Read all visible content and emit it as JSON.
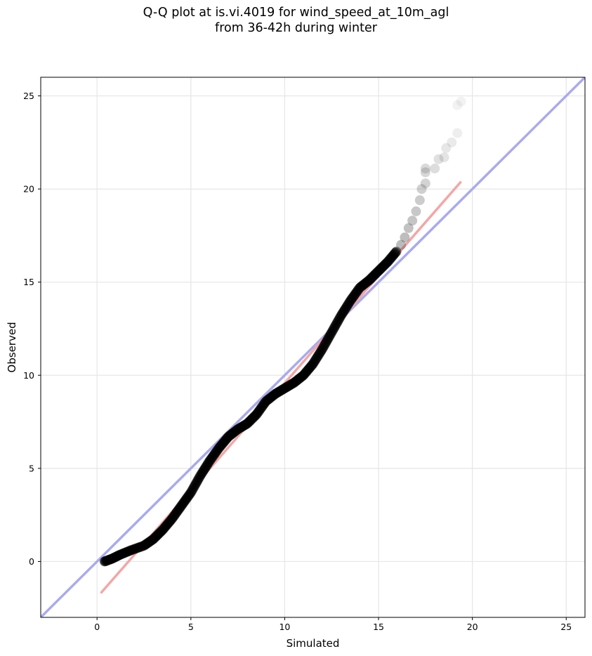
{
  "chart_data": {
    "type": "scatter",
    "title": "Q-Q plot at is.vi.4019 for wind_speed_at_10m_agl",
    "subtitle": "from 36-42h during winter",
    "xlabel": "Simulated",
    "ylabel": "Observed",
    "xlim": [
      -3,
      26
    ],
    "ylim": [
      -3,
      26
    ],
    "x_ticks": [
      "0",
      "5",
      "10",
      "15",
      "20",
      "25"
    ],
    "y_ticks": [
      "0",
      "5",
      "10",
      "15",
      "20",
      "25"
    ],
    "grid": true,
    "reference_line": {
      "label": "",
      "color": "#aaaaee",
      "from": [
        -3,
        -3
      ],
      "to": [
        26,
        26
      ]
    },
    "fit_line": {
      "label": "",
      "color": "#f4a6a6",
      "from": [
        0.2,
        -1.7
      ],
      "to": [
        19.4,
        20.4
      ]
    },
    "quantile_curve": [
      [
        0.4,
        0.0
      ],
      [
        0.8,
        0.15
      ],
      [
        1.2,
        0.35
      ],
      [
        1.8,
        0.6
      ],
      [
        2.5,
        0.85
      ],
      [
        3.0,
        1.2
      ],
      [
        3.5,
        1.7
      ],
      [
        4.0,
        2.3
      ],
      [
        4.5,
        3.0
      ],
      [
        5.0,
        3.7
      ],
      [
        5.5,
        4.6
      ],
      [
        6.0,
        5.4
      ],
      [
        6.5,
        6.1
      ],
      [
        7.0,
        6.7
      ],
      [
        7.5,
        7.1
      ],
      [
        8.0,
        7.4
      ],
      [
        8.5,
        7.9
      ],
      [
        9.0,
        8.6
      ],
      [
        9.5,
        9.0
      ],
      [
        10.0,
        9.3
      ],
      [
        10.5,
        9.6
      ],
      [
        11.0,
        10.0
      ],
      [
        11.5,
        10.6
      ],
      [
        12.0,
        11.4
      ],
      [
        12.5,
        12.3
      ],
      [
        13.0,
        13.2
      ],
      [
        13.5,
        14.0
      ],
      [
        14.0,
        14.7
      ],
      [
        14.5,
        15.1
      ],
      [
        15.0,
        15.6
      ],
      [
        15.5,
        16.1
      ],
      [
        16.0,
        16.7
      ]
    ],
    "tail_points": [
      [
        16.2,
        17.0
      ],
      [
        16.4,
        17.4
      ],
      [
        16.6,
        17.9
      ],
      [
        16.8,
        18.3
      ],
      [
        17.0,
        18.8
      ],
      [
        17.2,
        19.4
      ],
      [
        17.3,
        20.0
      ],
      [
        17.5,
        20.3
      ],
      [
        17.5,
        20.9
      ],
      [
        17.5,
        21.1
      ],
      [
        18.0,
        21.1
      ],
      [
        18.2,
        21.6
      ],
      [
        18.5,
        21.7
      ],
      [
        18.6,
        22.2
      ],
      [
        18.9,
        22.5
      ],
      [
        19.2,
        23.0
      ],
      [
        19.2,
        24.5
      ],
      [
        19.4,
        24.7
      ]
    ]
  }
}
